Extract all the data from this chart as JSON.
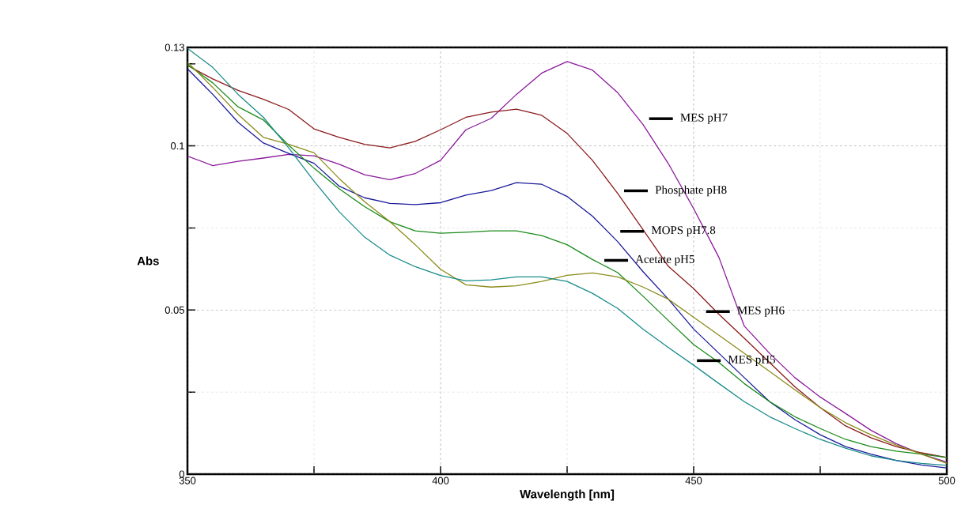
{
  "chart_data": {
    "type": "line",
    "xlabel": "Wavelength [nm]",
    "ylabel": "Abs",
    "x": [
      350,
      355,
      360,
      365,
      370,
      375,
      380,
      385,
      390,
      395,
      400,
      405,
      410,
      415,
      420,
      425,
      430,
      435,
      440,
      445,
      450,
      455,
      460,
      465,
      470,
      475,
      480,
      485,
      490,
      495,
      500
    ],
    "series": [
      {
        "color": "#8b1a9b",
        "values": [
          0.0969,
          0.094,
          0.0953,
          0.0963,
          0.0974,
          0.097,
          0.0944,
          0.0912,
          0.0897,
          0.0916,
          0.0956,
          0.1049,
          0.1084,
          0.1157,
          0.1222,
          0.1257,
          0.1231,
          0.1162,
          0.1065,
          0.0946,
          0.0809,
          0.066,
          0.0451,
          0.0368,
          0.0294,
          0.0235,
          0.0185,
          0.0134,
          0.0093,
          0.0061,
          0.0037
        ]
      },
      {
        "color": "#8b1a1a",
        "values": [
          0.1245,
          0.1204,
          0.1169,
          0.1142,
          0.1111,
          0.1052,
          0.1026,
          0.1005,
          0.0994,
          0.1014,
          0.1049,
          0.1087,
          0.1103,
          0.1112,
          0.1093,
          0.1038,
          0.0956,
          0.0855,
          0.0745,
          0.0633,
          0.0565,
          0.0487,
          0.0414,
          0.034,
          0.0266,
          0.0203,
          0.0147,
          0.0111,
          0.0084,
          0.0065,
          0.0051
        ]
      },
      {
        "color": "#1a1a9b",
        "values": [
          0.1235,
          0.1157,
          0.1072,
          0.1009,
          0.0977,
          0.0947,
          0.0877,
          0.0842,
          0.0825,
          0.0821,
          0.0827,
          0.085,
          0.0864,
          0.0888,
          0.0883,
          0.0846,
          0.0786,
          0.0708,
          0.0617,
          0.0533,
          0.0442,
          0.0368,
          0.0294,
          0.0221,
          0.0166,
          0.012,
          0.0084,
          0.0061,
          0.0042,
          0.0028,
          0.0019
        ]
      },
      {
        "color": "#1a8b1a",
        "values": [
          0.1248,
          0.1192,
          0.1119,
          0.1079,
          0.1002,
          0.0932,
          0.0869,
          0.0815,
          0.0769,
          0.0741,
          0.0734,
          0.0737,
          0.0741,
          0.0741,
          0.0727,
          0.0699,
          0.0654,
          0.0614,
          0.0542,
          0.0468,
          0.0395,
          0.034,
          0.0276,
          0.0221,
          0.0175,
          0.0139,
          0.0106,
          0.0084,
          0.007,
          0.0061,
          0.0051
        ]
      },
      {
        "color": "#8b8b1a",
        "values": [
          0.1255,
          0.1178,
          0.1096,
          0.1026,
          0.1005,
          0.0979,
          0.09,
          0.083,
          0.0769,
          0.0699,
          0.0624,
          0.0577,
          0.057,
          0.0574,
          0.0587,
          0.0606,
          0.0613,
          0.0601,
          0.057,
          0.0533,
          0.0478,
          0.0423,
          0.0368,
          0.0313,
          0.0257,
          0.0203,
          0.0157,
          0.012,
          0.0089,
          0.0061,
          0.0033
        ]
      },
      {
        "color": "#1a8b8b",
        "values": [
          0.1297,
          0.1239,
          0.1157,
          0.1087,
          0.0994,
          0.0893,
          0.0799,
          0.0722,
          0.0667,
          0.0632,
          0.0605,
          0.0589,
          0.0592,
          0.0601,
          0.0601,
          0.0587,
          0.0551,
          0.0505,
          0.0442,
          0.0386,
          0.0332,
          0.0276,
          0.0221,
          0.0175,
          0.0139,
          0.0106,
          0.0079,
          0.0056,
          0.0042,
          0.0033,
          0.0027
        ]
      }
    ],
    "xlim": [
      350,
      500
    ],
    "ylim": [
      0,
      0.13
    ],
    "xticks": [
      350,
      400,
      450,
      500,
      {
        "value": 375,
        "label": null
      },
      {
        "value": 425,
        "label": null
      },
      {
        "value": 475,
        "label": null
      }
    ],
    "yticks": [
      0,
      0.05,
      0.1,
      0.13,
      {
        "value": 0.025,
        "label": null
      },
      {
        "value": 0.075,
        "label": null
      },
      {
        "value": 0.125,
        "label": null
      }
    ],
    "grid": true,
    "annotations": [
      "MES pH7",
      "Phosphate pH8",
      "MOPS pH7.8",
      "Acetate pH5",
      "MES pH6",
      "MES pH5"
    ]
  }
}
